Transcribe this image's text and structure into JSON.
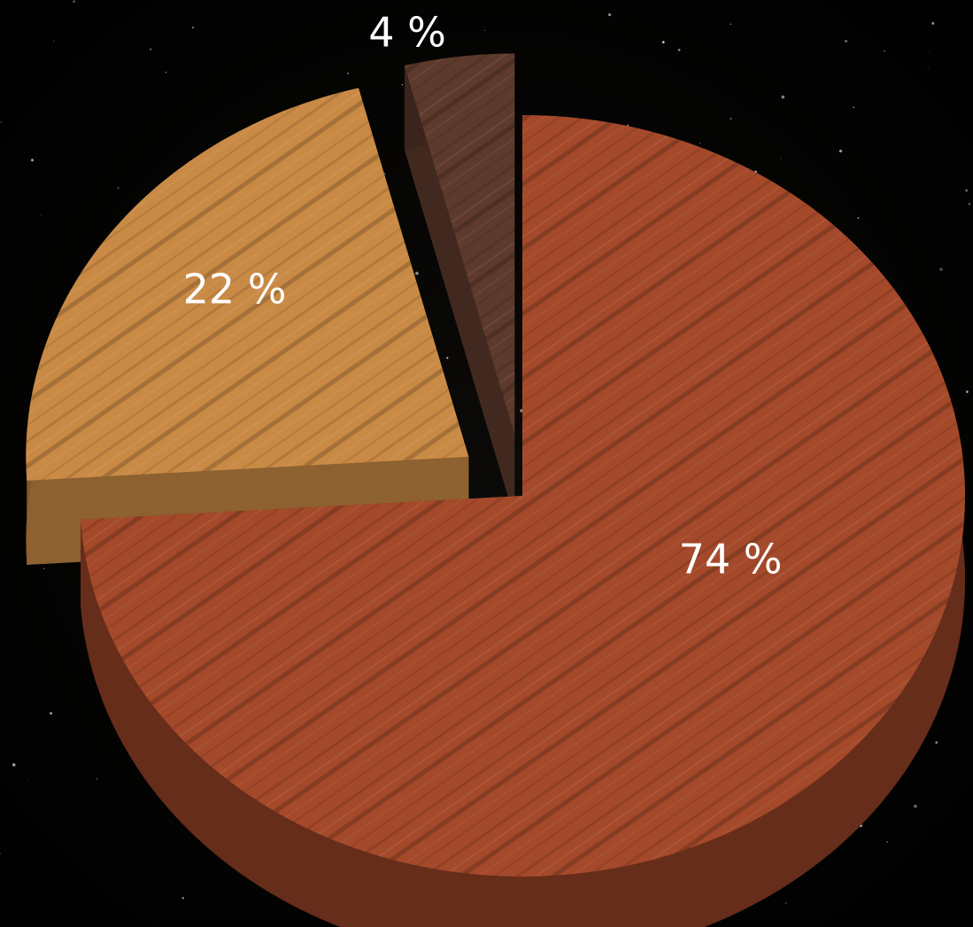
{
  "chart_data": {
    "type": "pie",
    "values": [
      74,
      22,
      4
    ],
    "value_labels": [
      "74 %",
      "22 %",
      "4 %"
    ],
    "colors": [
      "#a4492a",
      "#c98a45",
      "#5e3a2c"
    ],
    "categories": [
      null,
      null,
      null
    ]
  }
}
